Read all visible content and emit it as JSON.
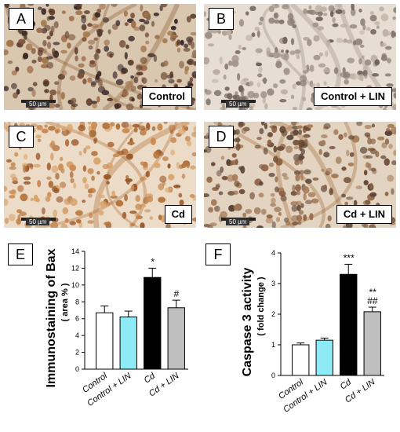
{
  "micro_panels": [
    {
      "letter": "A",
      "label": "Control",
      "scale": "50 µm"
    },
    {
      "letter": "B",
      "label": "Control + LIN",
      "scale": "50 µm"
    },
    {
      "letter": "C",
      "label": "Cd",
      "scale": "50 µm"
    },
    {
      "letter": "D",
      "label": "Cd + LIN",
      "scale": "50 µm"
    }
  ],
  "chart_data": [
    {
      "type": "bar",
      "panel": "E",
      "categories": [
        "Control",
        "Control + LIN",
        "Cd",
        "Cd + LIN"
      ],
      "values": [
        6.7,
        6.2,
        10.9,
        7.3
      ],
      "errors": [
        0.8,
        0.7,
        1.1,
        0.9
      ],
      "sig": [
        "",
        "",
        "*",
        "#"
      ],
      "ylabel": "Immunostaining of Bax",
      "ylabel_sub": "( area % )",
      "ylim": [
        0,
        14
      ],
      "yticks": [
        0,
        2,
        4,
        6,
        8,
        10,
        12,
        14
      ],
      "colors": [
        "#ffffff",
        "#8eeaf5",
        "#000000",
        "#bfbfbf"
      ]
    },
    {
      "type": "bar",
      "panel": "F",
      "categories": [
        "Control",
        "Control + LIN",
        "Cd",
        "Cd + LIN"
      ],
      "values": [
        1.0,
        1.15,
        3.3,
        2.08
      ],
      "errors": [
        0.06,
        0.07,
        0.33,
        0.15
      ],
      "sig": [
        "",
        "",
        "***",
        "**|##"
      ],
      "ylabel": "Caspase 3 activity",
      "ylabel_sub": "( fold change )",
      "ylim": [
        0,
        4
      ],
      "yticks": [
        0,
        1,
        2,
        3,
        4
      ],
      "colors": [
        "#ffffff",
        "#8eeaf5",
        "#000000",
        "#bfbfbf"
      ]
    }
  ]
}
